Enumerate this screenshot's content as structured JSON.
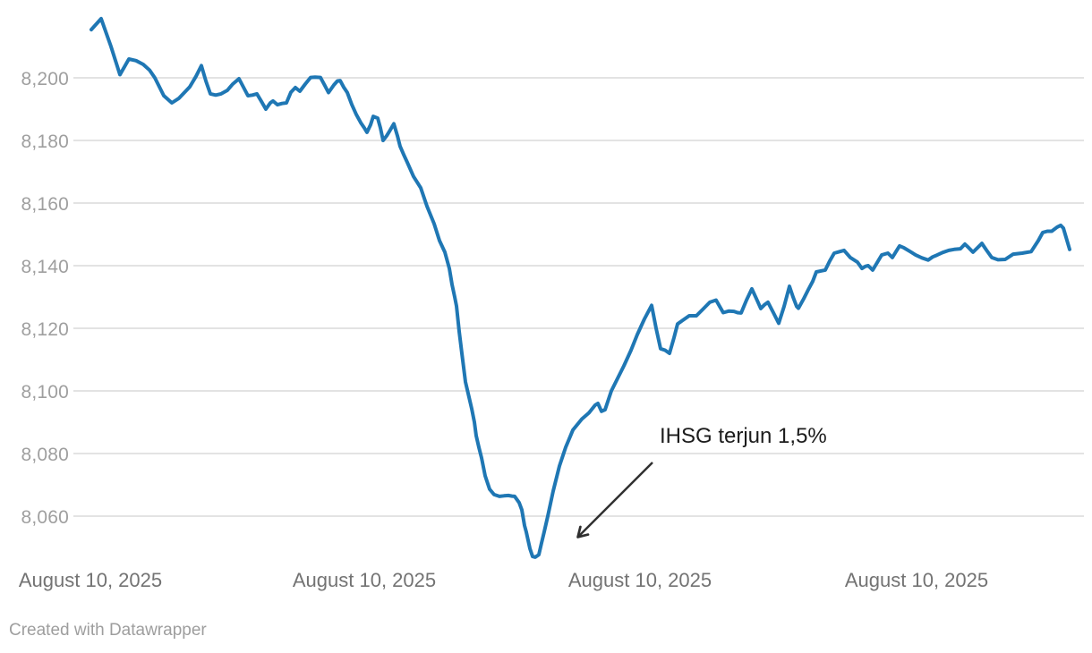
{
  "chart": {
    "annotation": {
      "text": "IHSG terjun 1,5%"
    }
  },
  "footer": {
    "credit": "Created with Datawrapper"
  },
  "colors": {
    "line": "#1f77b4",
    "grid": "#e3e3e3",
    "annotation_text": "#1c1c1c",
    "arrow": "#2f2f2f",
    "y_tick_text": "#9f9f9f",
    "x_tick_text": "#737373"
  },
  "chart_data": {
    "type": "line",
    "title": "",
    "xlabel": "",
    "ylabel": "",
    "grid": true,
    "legend": "none",
    "ylim": [
      8040,
      8225
    ],
    "y_ticks": [
      {
        "value": 8200,
        "label": "8,200"
      },
      {
        "value": 8180,
        "label": "8,180"
      },
      {
        "value": 8160,
        "label": "8,160"
      },
      {
        "value": 8140,
        "label": "8,140"
      },
      {
        "value": 8120,
        "label": "8,120"
      },
      {
        "value": 8100,
        "label": "8,100"
      },
      {
        "value": 8080,
        "label": "8,080"
      },
      {
        "value": 8060,
        "label": "8,060"
      }
    ],
    "x_ticks": [
      {
        "label": "August 10, 2025",
        "cx": 101
      },
      {
        "label": "August 10, 2025",
        "cx": 407
      },
      {
        "label": "August 10, 2025",
        "cx": 715
      },
      {
        "label": "August 10, 2025",
        "cx": 1024
      }
    ],
    "series": [
      {
        "name": "IHSG",
        "color": "#1f77b4",
        "points": [
          [
            102,
            8215.4
          ],
          [
            113,
            8218.9
          ],
          [
            124,
            8210.0
          ],
          [
            134,
            8201.0
          ],
          [
            144,
            8206.0
          ],
          [
            152,
            8205.5
          ],
          [
            160,
            8204.3
          ],
          [
            167,
            8202.5
          ],
          [
            173,
            8200.0
          ],
          [
            183,
            8194.3
          ],
          [
            192,
            8192.0
          ],
          [
            200,
            8193.5
          ],
          [
            212,
            8197.1
          ],
          [
            219,
            8200.5
          ],
          [
            225,
            8203.9
          ],
          [
            230,
            8199.0
          ],
          [
            235,
            8194.9
          ],
          [
            241,
            8194.5
          ],
          [
            247,
            8194.9
          ],
          [
            254,
            8196.0
          ],
          [
            260,
            8198.0
          ],
          [
            267,
            8199.7
          ],
          [
            272,
            8197.0
          ],
          [
            277,
            8194.3
          ],
          [
            282,
            8194.5
          ],
          [
            287,
            8194.9
          ],
          [
            292,
            8192.5
          ],
          [
            297,
            8190.0
          ],
          [
            302,
            8192.0
          ],
          [
            305,
            8192.6
          ],
          [
            310,
            8191.4
          ],
          [
            315,
            8191.8
          ],
          [
            320,
            8192.0
          ],
          [
            325,
            8195.4
          ],
          [
            330,
            8196.9
          ],
          [
            335,
            8195.7
          ],
          [
            341,
            8198.0
          ],
          [
            347,
            8200.1
          ],
          [
            352,
            8200.2
          ],
          [
            358,
            8200.1
          ],
          [
            363,
            8197.5
          ],
          [
            367,
            8195.3
          ],
          [
            373,
            8197.7
          ],
          [
            377,
            8199.0
          ],
          [
            380,
            8199.1
          ],
          [
            384,
            8197.0
          ],
          [
            388,
            8195.3
          ],
          [
            393,
            8191.5
          ],
          [
            398,
            8188.3
          ],
          [
            403,
            8185.7
          ],
          [
            407,
            8184.0
          ],
          [
            410,
            8182.6
          ],
          [
            414,
            8185.0
          ],
          [
            417,
            8187.7
          ],
          [
            422,
            8187.1
          ],
          [
            425,
            8184.0
          ],
          [
            428,
            8180.0
          ],
          [
            432,
            8181.5
          ],
          [
            435,
            8182.9
          ],
          [
            440,
            8185.3
          ],
          [
            444,
            8181.5
          ],
          [
            447,
            8178.1
          ],
          [
            451,
            8175.5
          ],
          [
            455,
            8173.0
          ],
          [
            462,
            8168.5
          ],
          [
            470,
            8164.9
          ],
          [
            477,
            8159.0
          ],
          [
            485,
            8153.4
          ],
          [
            491,
            8148.0
          ],
          [
            497,
            8144.3
          ],
          [
            502,
            8139.1
          ],
          [
            505,
            8134.0
          ],
          [
            508,
            8130.0
          ],
          [
            510,
            8127.1
          ],
          [
            513,
            8119.0
          ],
          [
            516,
            8112.0
          ],
          [
            520,
            8102.9
          ],
          [
            524,
            8098.0
          ],
          [
            527,
            8094.3
          ],
          [
            530,
            8090.0
          ],
          [
            532,
            8085.7
          ],
          [
            535,
            8082.0
          ],
          [
            538,
            8078.6
          ],
          [
            542,
            8072.9
          ],
          [
            547,
            8068.6
          ],
          [
            552,
            8066.9
          ],
          [
            558,
            8066.3
          ],
          [
            563,
            8066.5
          ],
          [
            568,
            8066.6
          ],
          [
            572,
            8066.4
          ],
          [
            575,
            8066.3
          ],
          [
            580,
            8064.3
          ],
          [
            583,
            8062.0
          ],
          [
            586,
            8057.0
          ],
          [
            588,
            8054.9
          ],
          [
            592,
            8049.7
          ],
          [
            595,
            8047.1
          ],
          [
            598,
            8046.9
          ],
          [
            602,
            8047.7
          ],
          [
            605,
            8051.4
          ],
          [
            608,
            8055.0
          ],
          [
            612,
            8060.0
          ],
          [
            618,
            8068.0
          ],
          [
            625,
            8076.0
          ],
          [
            632,
            8082.0
          ],
          [
            640,
            8087.5
          ],
          [
            650,
            8091.0
          ],
          [
            658,
            8093.0
          ],
          [
            665,
            8095.5
          ],
          [
            668,
            8096.0
          ],
          [
            672,
            8093.5
          ],
          [
            676,
            8094.0
          ],
          [
            683,
            8100.0
          ],
          [
            690,
            8104.0
          ],
          [
            697,
            8108.0
          ],
          [
            705,
            8113.0
          ],
          [
            712,
            8118.0
          ],
          [
            720,
            8123.0
          ],
          [
            728,
            8127.3
          ],
          [
            733,
            8120.0
          ],
          [
            738,
            8113.5
          ],
          [
            743,
            8113.0
          ],
          [
            748,
            8112.0
          ],
          [
            753,
            8117.0
          ],
          [
            757,
            8121.4
          ],
          [
            763,
            8122.6
          ],
          [
            770,
            8124.0
          ],
          [
            778,
            8124.0
          ],
          [
            785,
            8126.0
          ],
          [
            793,
            8128.3
          ],
          [
            800,
            8129.0
          ],
          [
            808,
            8125.0
          ],
          [
            814,
            8125.5
          ],
          [
            820,
            8125.4
          ],
          [
            824,
            8125.0
          ],
          [
            828,
            8124.9
          ],
          [
            834,
            8129.0
          ],
          [
            840,
            8132.6
          ],
          [
            845,
            8129.5
          ],
          [
            850,
            8126.3
          ],
          [
            854,
            8127.5
          ],
          [
            858,
            8128.3
          ],
          [
            864,
            8125.0
          ],
          [
            870,
            8121.6
          ],
          [
            876,
            8127.0
          ],
          [
            882,
            8133.4
          ],
          [
            886,
            8130.0
          ],
          [
            890,
            8127.0
          ],
          [
            892,
            8126.4
          ],
          [
            898,
            8129.5
          ],
          [
            903,
            8132.3
          ],
          [
            908,
            8135.0
          ],
          [
            912,
            8138.0
          ],
          [
            917,
            8138.3
          ],
          [
            922,
            8138.6
          ],
          [
            927,
            8141.5
          ],
          [
            932,
            8144.0
          ],
          [
            938,
            8144.5
          ],
          [
            943,
            8144.9
          ],
          [
            950,
            8142.6
          ],
          [
            958,
            8141.1
          ],
          [
            963,
            8139.1
          ],
          [
            967,
            8139.8
          ],
          [
            970,
            8140.0
          ],
          [
            975,
            8138.6
          ],
          [
            980,
            8141.0
          ],
          [
            985,
            8143.4
          ],
          [
            992,
            8144.0
          ],
          [
            997,
            8142.6
          ],
          [
            1001,
            8144.5
          ],
          [
            1005,
            8146.3
          ],
          [
            1010,
            8145.7
          ],
          [
            1017,
            8144.5
          ],
          [
            1023,
            8143.4
          ],
          [
            1030,
            8142.5
          ],
          [
            1037,
            8141.8
          ],
          [
            1042,
            8142.8
          ],
          [
            1047,
            8143.4
          ],
          [
            1053,
            8144.2
          ],
          [
            1060,
            8144.9
          ],
          [
            1066,
            8145.2
          ],
          [
            1073,
            8145.4
          ],
          [
            1078,
            8146.9
          ],
          [
            1082,
            8145.8
          ],
          [
            1087,
            8144.3
          ],
          [
            1092,
            8145.7
          ],
          [
            1097,
            8147.1
          ],
          [
            1102,
            8145.0
          ],
          [
            1108,
            8142.6
          ],
          [
            1115,
            8141.9
          ],
          [
            1123,
            8142.0
          ],
          [
            1132,
            8143.7
          ],
          [
            1142,
            8144.0
          ],
          [
            1152,
            8144.5
          ],
          [
            1160,
            8148.0
          ],
          [
            1165,
            8150.6
          ],
          [
            1170,
            8151.0
          ],
          [
            1175,
            8151.0
          ],
          [
            1181,
            8152.3
          ],
          [
            1185,
            8152.9
          ],
          [
            1188,
            8152.0
          ],
          [
            1195,
            8145.2
          ]
        ]
      }
    ],
    "annotations": [
      {
        "text": "IHSG terjun 1,5%",
        "arrow_from_xy": [
          729,
          517
        ],
        "arrow_to_xy": [
          646,
          600
        ]
      }
    ]
  }
}
